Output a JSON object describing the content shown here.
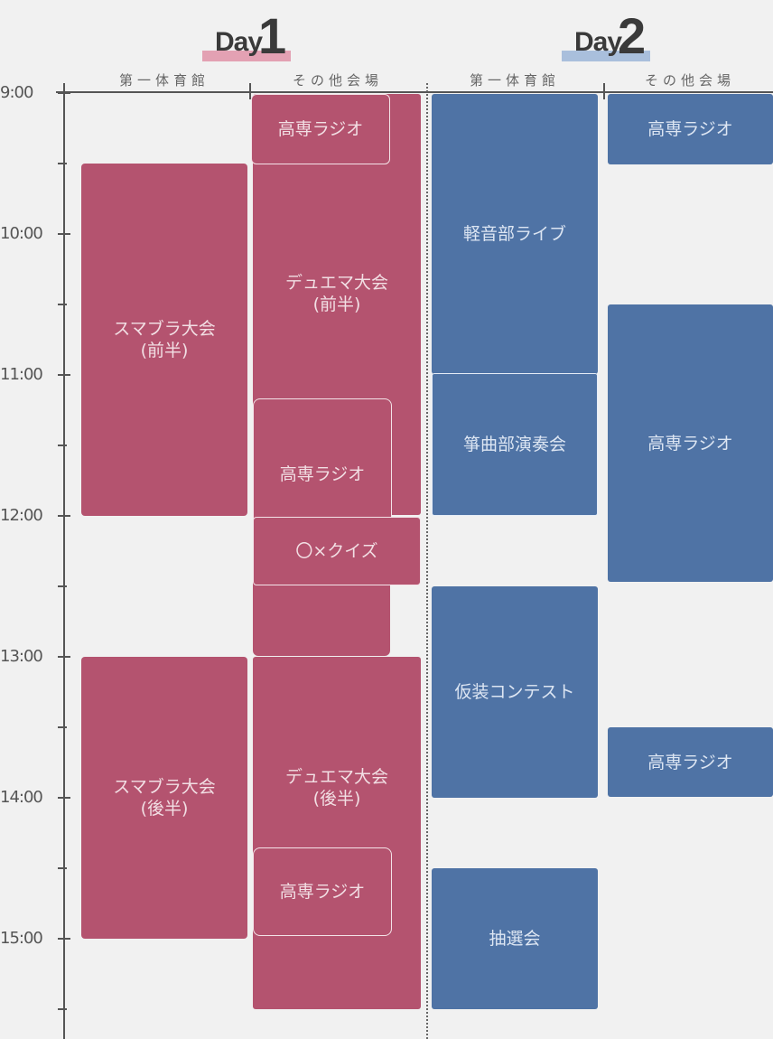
{
  "days": [
    {
      "word": "Day",
      "num": "1",
      "highlight": "#e3a1b3"
    },
    {
      "word": "Day",
      "num": "2",
      "highlight": "#a9bfdc"
    }
  ],
  "columns": {
    "day1_gym": "第一体育館",
    "day1_other": "その他会場",
    "day2_gym": "第一体育館",
    "day2_other": "その他会場"
  },
  "hours": [
    "9:00",
    "10:00",
    "11:00",
    "12:00",
    "13:00",
    "14:00",
    "15:00"
  ],
  "colors": {
    "day1": "#b4536f",
    "day2": "#4f73a5"
  },
  "events": {
    "d1_gym_1": {
      "label": "スマブラ大会\n(前半)"
    },
    "d1_gym_2": {
      "label": "スマブラ大会\n(後半)"
    },
    "d1_other_1": {
      "label": "高専ラジオ"
    },
    "d1_other_2": {
      "label": "デュエマ大会\n(前半)"
    },
    "d1_other_3": {
      "label": "高専ラジオ"
    },
    "d1_other_4": {
      "label": "〇×クイズ"
    },
    "d1_other_5": {
      "label": "デュエマ大会\n(後半)"
    },
    "d1_other_6": {
      "label": "高専ラジオ"
    },
    "d2_gym_1": {
      "label": "軽音部ライブ"
    },
    "d2_gym_2": {
      "label": "箏曲部演奏会"
    },
    "d2_gym_3": {
      "label": "仮装コンテスト"
    },
    "d2_gym_4": {
      "label": "抽選会"
    },
    "d2_other_1": {
      "label": "高専ラジオ"
    },
    "d2_other_2": {
      "label": "高専ラジオ"
    },
    "d2_other_3": {
      "label": "高専ラジオ"
    }
  }
}
